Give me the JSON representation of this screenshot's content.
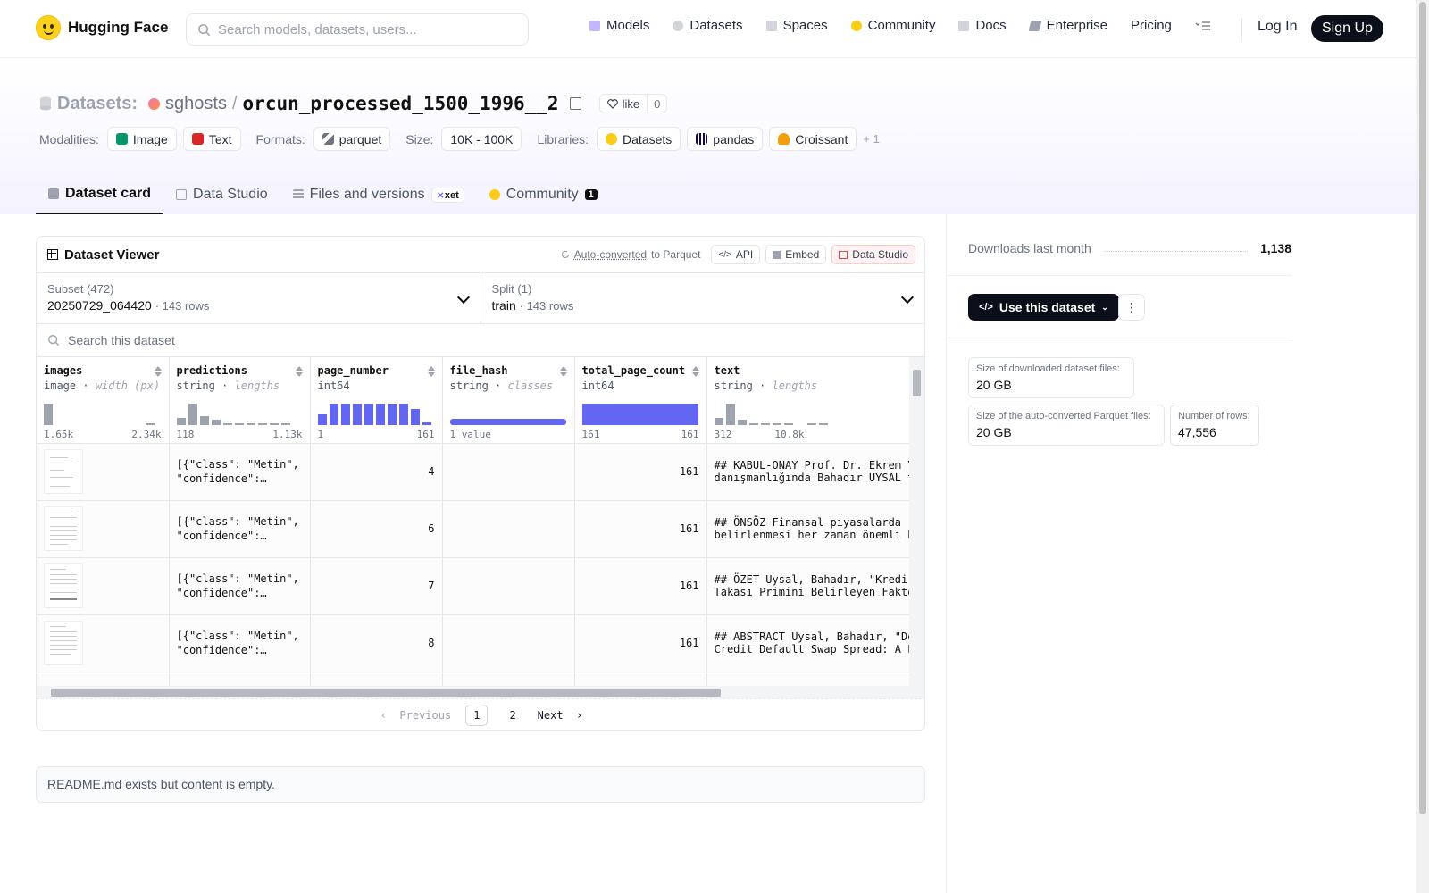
{
  "header": {
    "brand": "Hugging Face",
    "search_placeholder": "Search models, datasets, users...",
    "nav": [
      {
        "label": "Models",
        "icon": "cube-icon",
        "color": "#a855f7"
      },
      {
        "label": "Datasets",
        "icon": "database-icon",
        "color": "#ef4444"
      },
      {
        "label": "Spaces",
        "icon": "grid-icon",
        "color": "#3b82f6"
      },
      {
        "label": "Community",
        "icon": "hug-icon",
        "color": "#facc15"
      },
      {
        "label": "Docs",
        "icon": "book-icon",
        "color": "#6b7280"
      },
      {
        "label": "Enterprise",
        "icon": "building-icon",
        "color": "#6b7280"
      },
      {
        "label": "Pricing",
        "icon": "",
        "color": ""
      }
    ],
    "login": "Log In",
    "signup": "Sign Up"
  },
  "title": {
    "kind": "Datasets:",
    "owner": "sghosts",
    "separator": "/",
    "name": "orcun_processed_1500_1996__2",
    "like_label": "like",
    "like_count": "0"
  },
  "tags": {
    "modalities_label": "Modalities:",
    "modalities": [
      "Image",
      "Text"
    ],
    "formats_label": "Formats:",
    "format": "parquet",
    "size_label": "Size:",
    "size": "10K - 100K",
    "libraries_label": "Libraries:",
    "libraries": [
      "Datasets",
      "pandas",
      "Croissant"
    ],
    "more": "+ 1"
  },
  "tabs": [
    {
      "label": "Dataset card",
      "active": true
    },
    {
      "label": "Data Studio",
      "active": false
    },
    {
      "label": "Files and versions",
      "active": false,
      "extra": "xet"
    },
    {
      "label": "Community",
      "active": false,
      "badge": "1"
    }
  ],
  "viewer": {
    "title": "Dataset Viewer",
    "auto_converted": "Auto-converted",
    "to_parquet": "to Parquet",
    "api": "API",
    "embed": "Embed",
    "data_studio": "Data Studio",
    "subset_label": "Subset (472)",
    "subset_value": "20250729_064420",
    "subset_rows": "143 rows",
    "split_label": "Split (1)",
    "split_value": "train",
    "split_rows": "143 rows",
    "search_placeholder": "Search this dataset",
    "columns": [
      {
        "name": "images",
        "type": "image",
        "hint": "width (px)",
        "min": "1.65k",
        "max": "2.34k"
      },
      {
        "name": "predictions",
        "type": "string",
        "hint": "lengths",
        "min": "118",
        "max": "1.13k"
      },
      {
        "name": "page_number",
        "type": "int64",
        "hint": "",
        "min": "1",
        "max": "161"
      },
      {
        "name": "file_hash",
        "type": "string",
        "hint": "classes",
        "min": "1 value",
        "max": ""
      },
      {
        "name": "total_page_count",
        "type": "int64",
        "hint": "",
        "min": "161",
        "max": "161"
      },
      {
        "name": "text",
        "type": "string",
        "hint": "lengths",
        "min": "312",
        "max": "10.8k"
      }
    ],
    "rows": [
      {
        "predictions": "[{\"class\": \"Metin\", \"confidence\":…",
        "page_number": "4",
        "total_page_count": "161",
        "text1": "## KABUL-ONAY Prof. Dr. Ekrem YI",
        "text2": "danışmanlığında Bahadır UYSAL ta"
      },
      {
        "predictions": "[{\"class\": \"Metin\", \"confidence\":…",
        "page_number": "6",
        "total_page_count": "161",
        "text1": "## ÖNSÖZ Finansal piyasalarda ri",
        "text2": "belirlenmesi her zaman önemli bi"
      },
      {
        "predictions": "[{\"class\": \"Metin\", \"confidence\":…",
        "page_number": "7",
        "total_page_count": "161",
        "text1": "## ÖZET Uysal, Bahadır, \"Kredi T",
        "text2": "Takası Primini Belirleyen Faktör"
      },
      {
        "predictions": "[{\"class\": \"Metin\", \"confidence\":…",
        "page_number": "8",
        "total_page_count": "161",
        "text1": "## ABSTRACT Uysal, Bahadır, \"Det",
        "text2": "Credit Default Swap Spread: A Pa"
      }
    ],
    "pager": {
      "previous": "Previous",
      "pages": [
        "1",
        "2"
      ],
      "current": "1",
      "next": "Next"
    }
  },
  "readme": "README.md exists but content is empty.",
  "sidebar": {
    "downloads_label": "Downloads last month",
    "downloads_value": "1,138",
    "use_button": "Use this dataset",
    "stats": [
      {
        "label": "Size of downloaded dataset files:",
        "value": "20 GB"
      },
      {
        "label": "Size of the auto-converted Parquet files:",
        "value": "20 GB"
      },
      {
        "label": "Number of rows:",
        "value": "47,556"
      }
    ]
  },
  "colors": {
    "accent_bar": "#6366f1",
    "neutral_bar": "#9ca3af",
    "dark_button": "#0b0f19"
  }
}
